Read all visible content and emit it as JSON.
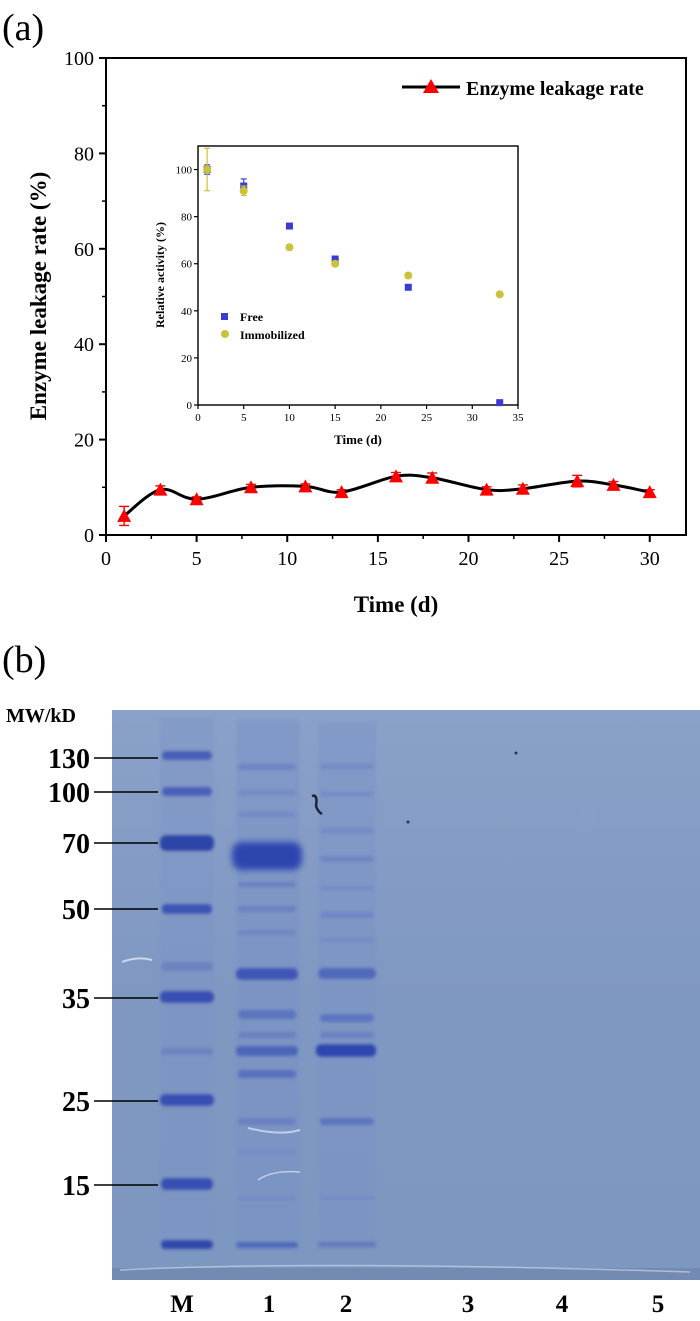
{
  "panel_a": {
    "label": "(a)",
    "chart_data": {
      "type": "line",
      "xlabel": "Time (d)",
      "ylabel": "Enzyme leakage rate (%)",
      "xlim": [
        0,
        32
      ],
      "ylim": [
        0,
        100
      ],
      "x_ticks": [
        0,
        5,
        10,
        15,
        20,
        25,
        30
      ],
      "y_ticks": [
        0,
        20,
        40,
        60,
        80,
        100
      ],
      "grid": false,
      "legend_position": "top-right",
      "series": [
        {
          "name": "Enzyme leakage rate",
          "color": "#ff0000",
          "line_color": "#000000",
          "marker": "triangle",
          "x": [
            1,
            3,
            5,
            8,
            11,
            13,
            16,
            18,
            21,
            23,
            26,
            28,
            30
          ],
          "y": [
            4.0,
            9.5,
            7.5,
            10.0,
            10.2,
            9.0,
            12.3,
            12.0,
            9.5,
            9.7,
            11.3,
            10.5,
            9.0
          ],
          "err": [
            2.0,
            0.8,
            0.5,
            0.6,
            0.5,
            0.5,
            0.8,
            1.0,
            0.6,
            0.8,
            1.2,
            0.7,
            0.5
          ]
        }
      ],
      "inset": {
        "type": "scatter",
        "xlabel": "Time (d)",
        "ylabel": "Relative activity (%)",
        "xlim": [
          0,
          35
        ],
        "ylim": [
          0,
          110
        ],
        "x_ticks": [
          0,
          5,
          10,
          15,
          20,
          25,
          30,
          35
        ],
        "y_ticks": [
          0,
          20,
          40,
          60,
          80,
          100
        ],
        "legend_position": "bottom-left",
        "series": [
          {
            "name": "Free",
            "color": "#3b3bd1",
            "marker": "square",
            "x": [
              1,
              5,
              10,
              15,
              23,
              33
            ],
            "y": [
              100,
              93,
              76,
              62,
              50,
              1
            ],
            "err": [
              2,
              3,
              1,
              1,
              1,
              0.5
            ]
          },
          {
            "name": "Immobilized",
            "color": "#c9c23a",
            "marker": "circle",
            "x": [
              1,
              5,
              10,
              15,
              23,
              33
            ],
            "y": [
              100,
              91,
              67,
              60,
              55,
              47
            ],
            "err": [
              9,
              2,
              1,
              1,
              1,
              0.5
            ]
          }
        ]
      }
    }
  },
  "panel_b": {
    "label": "(b)",
    "mw_title": "MW/kD",
    "mw_markers": [
      {
        "label": "130",
        "kd": 130
      },
      {
        "label": "100",
        "kd": 100
      },
      {
        "label": "70",
        "kd": 70
      },
      {
        "label": "50",
        "kd": 50
      },
      {
        "label": "35",
        "kd": 35
      },
      {
        "label": "25",
        "kd": 25
      },
      {
        "label": "15",
        "kd": 15
      }
    ],
    "lanes": [
      "M",
      "1",
      "2",
      "3",
      "4",
      "5"
    ],
    "gel_color": "#7f98c2"
  }
}
